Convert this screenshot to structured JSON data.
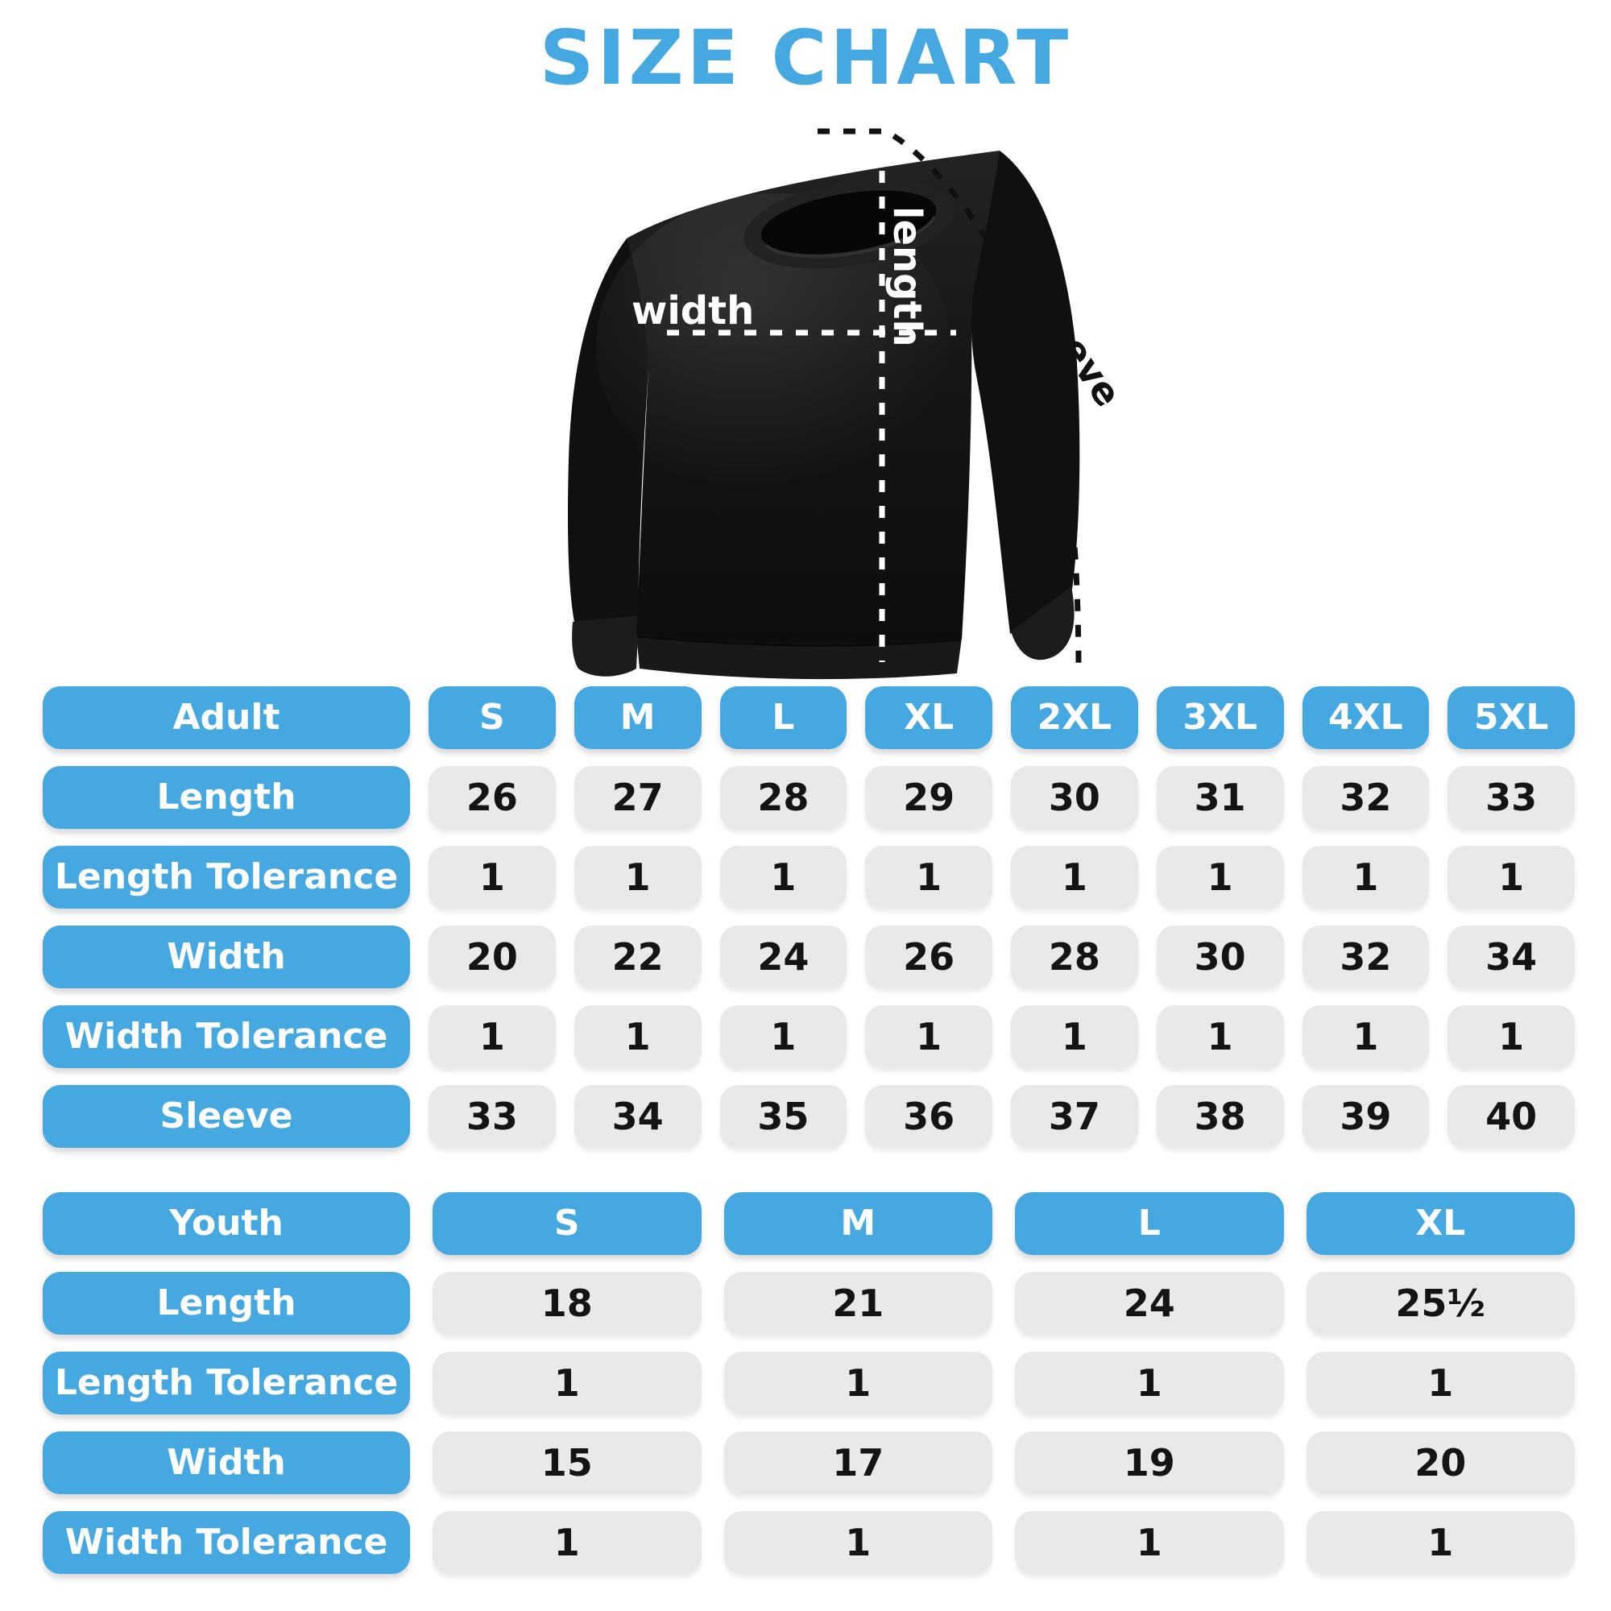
{
  "title": "SIZE CHART",
  "diagram": {
    "garment": "black crewneck sweatshirt",
    "labels": {
      "length": "length",
      "width": "width",
      "sleeve": "sleeve"
    }
  },
  "adult_table": {
    "header": [
      "Adult",
      "S",
      "M",
      "L",
      "XL",
      "2XL",
      "3XL",
      "4XL",
      "5XL"
    ],
    "rows": [
      {
        "label": "Length",
        "values": [
          "26",
          "27",
          "28",
          "29",
          "30",
          "31",
          "32",
          "33"
        ]
      },
      {
        "label": "Length Tolerance",
        "values": [
          "1",
          "1",
          "1",
          "1",
          "1",
          "1",
          "1",
          "1"
        ]
      },
      {
        "label": "Width",
        "values": [
          "20",
          "22",
          "24",
          "26",
          "28",
          "30",
          "32",
          "34"
        ]
      },
      {
        "label": "Width Tolerance",
        "values": [
          "1",
          "1",
          "1",
          "1",
          "1",
          "1",
          "1",
          "1"
        ]
      },
      {
        "label": "Sleeve",
        "values": [
          "33",
          "34",
          "35",
          "36",
          "37",
          "38",
          "39",
          "40"
        ]
      }
    ]
  },
  "youth_table": {
    "header": [
      "Youth",
      "S",
      "M",
      "L",
      "XL"
    ],
    "rows": [
      {
        "label": "Length",
        "values": [
          "18",
          "21",
          "24",
          "25½"
        ]
      },
      {
        "label": "Length Tolerance",
        "values": [
          "1",
          "1",
          "1",
          "1"
        ]
      },
      {
        "label": "Width",
        "values": [
          "15",
          "17",
          "19",
          "20"
        ]
      },
      {
        "label": "Width Tolerance",
        "values": [
          "1",
          "1",
          "1",
          "1"
        ]
      }
    ]
  },
  "colors": {
    "accent_blue": "#45a8e1",
    "cell_gray": "#e9e9eb",
    "text_dark": "#141414",
    "garment_black": "#121212",
    "page_background": "#ffffff"
  },
  "chart_data": [
    {
      "type": "table",
      "title": "Adult",
      "columns": [
        "Adult",
        "S",
        "M",
        "L",
        "XL",
        "2XL",
        "3XL",
        "4XL",
        "5XL"
      ],
      "rows": [
        [
          "Length",
          26,
          27,
          28,
          29,
          30,
          31,
          32,
          33
        ],
        [
          "Length Tolerance",
          1,
          1,
          1,
          1,
          1,
          1,
          1,
          1
        ],
        [
          "Width",
          20,
          22,
          24,
          26,
          28,
          30,
          32,
          34
        ],
        [
          "Width Tolerance",
          1,
          1,
          1,
          1,
          1,
          1,
          1,
          1
        ],
        [
          "Sleeve",
          33,
          34,
          35,
          36,
          37,
          38,
          39,
          40
        ]
      ]
    },
    {
      "type": "table",
      "title": "Youth",
      "columns": [
        "Youth",
        "S",
        "M",
        "L",
        "XL"
      ],
      "rows": [
        [
          "Length",
          18,
          21,
          24,
          "25½"
        ],
        [
          "Length Tolerance",
          1,
          1,
          1,
          1
        ],
        [
          "Width",
          15,
          17,
          19,
          20
        ],
        [
          "Width Tolerance",
          1,
          1,
          1,
          1
        ]
      ]
    }
  ]
}
